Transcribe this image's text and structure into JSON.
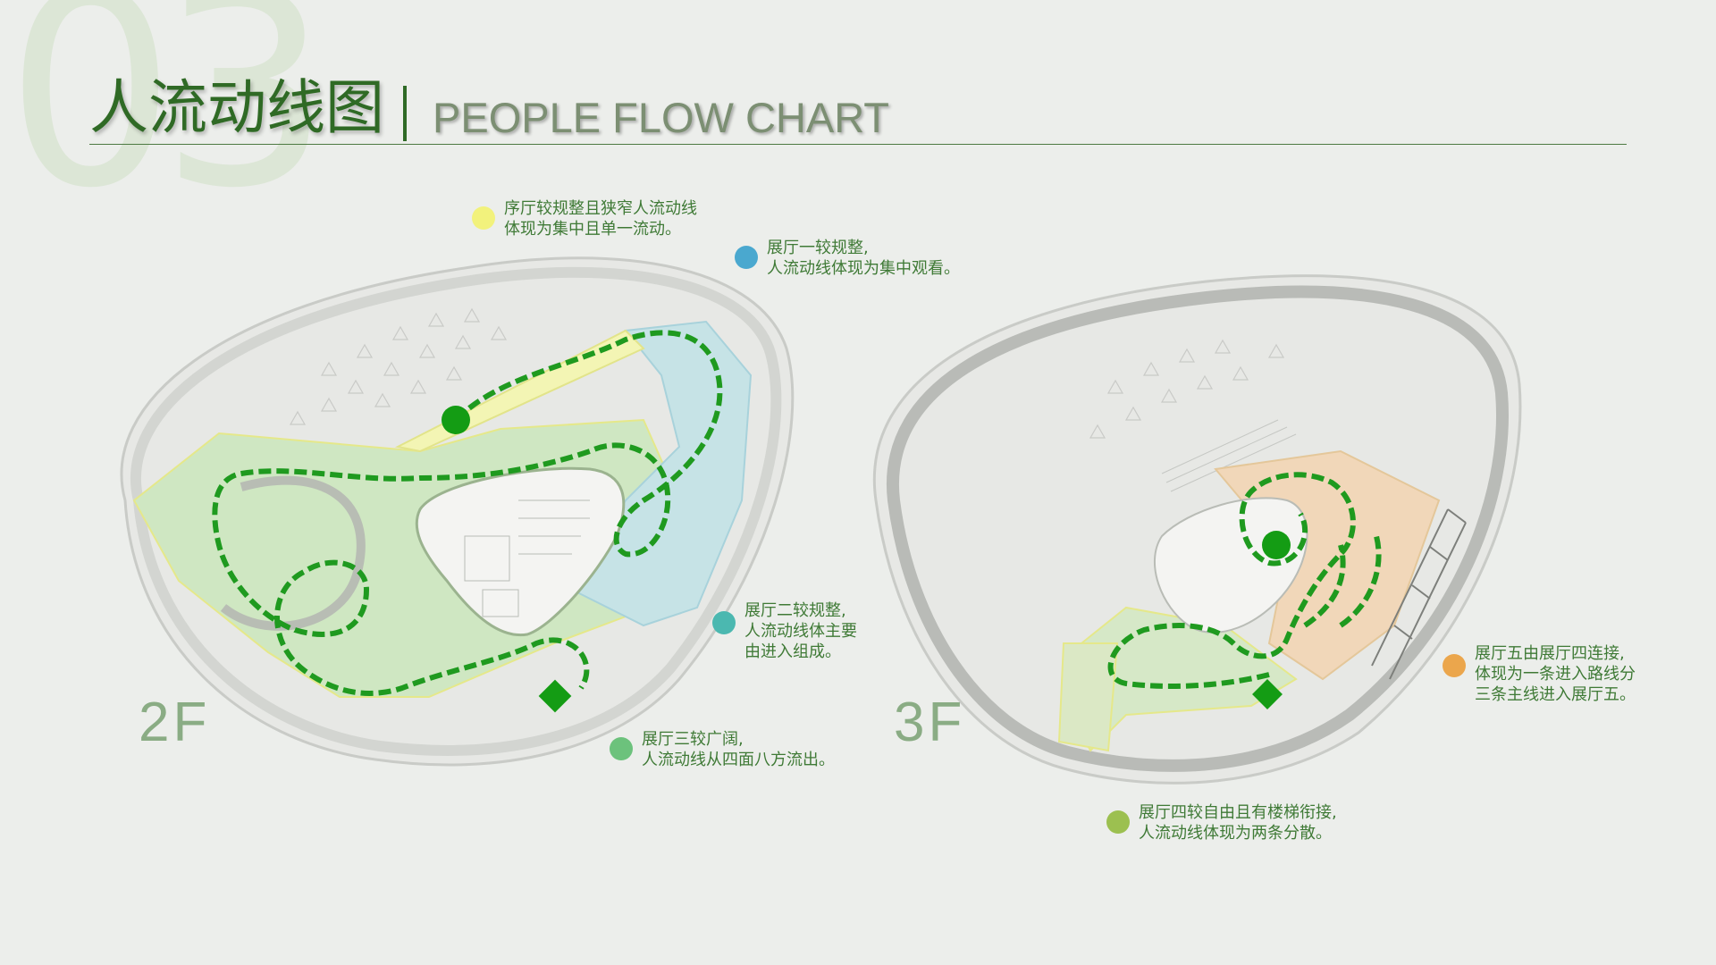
{
  "header": {
    "section_number": "03",
    "title_cn": "人流动线图",
    "title_en": "PEOPLE FLOW CHART"
  },
  "colors": {
    "accent": "#2f6a25",
    "flow_line": "#1f9a1f",
    "hall_green": "#cfe7c2",
    "hall_blue": "#c6e3e6",
    "hall_yellow": "#f3f5b4",
    "hall_orange": "#f1d7b9"
  },
  "floors": {
    "f2": "2F",
    "f3": "3F"
  },
  "notes": [
    {
      "id": "lobby",
      "color": "#f2f27c",
      "lines": [
        "序厅较规整且狭窄人流动线",
        "体现为集中且单一流动。"
      ]
    },
    {
      "id": "hall1",
      "color": "#4aa8cf",
      "lines": [
        "展厅一较规整,",
        "人流动线体现为集中观看。"
      ]
    },
    {
      "id": "hall2",
      "color": "#4bb8b0",
      "lines": [
        "展厅二较规整,",
        "人流动线体主要",
        "由进入组成。"
      ]
    },
    {
      "id": "hall3",
      "color": "#6cc27c",
      "lines": [
        "展厅三较广阔,",
        "人流动线从四面八方流出。"
      ]
    },
    {
      "id": "hall4",
      "color": "#9cc050",
      "lines": [
        "展厅四较自由且有楼梯衔接,",
        "人流动线体现为两条分散。"
      ]
    },
    {
      "id": "hall5",
      "color": "#eba64c",
      "lines": [
        "展厅五由展厅四连接,",
        "体现为一条进入路线分",
        "三条主线进入展厅五。"
      ]
    }
  ]
}
